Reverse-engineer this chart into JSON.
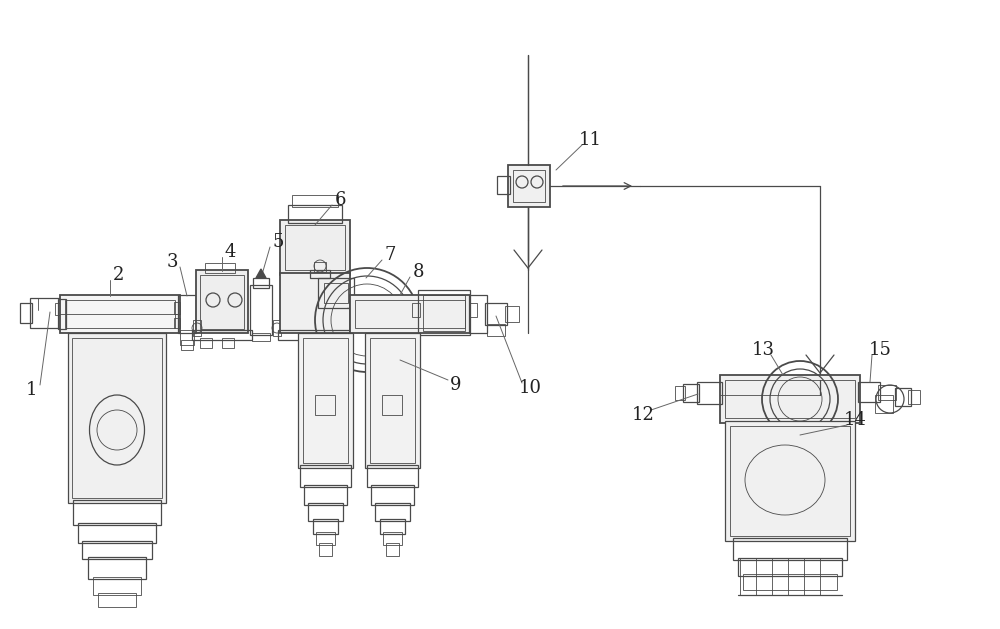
{
  "bg_color": "#ffffff",
  "line_color": "#4a4a4a",
  "label_color": "#222222",
  "fig_width": 10.0,
  "fig_height": 6.29,
  "lw_thin": 0.6,
  "lw_main": 0.9,
  "lw_thick": 1.3
}
